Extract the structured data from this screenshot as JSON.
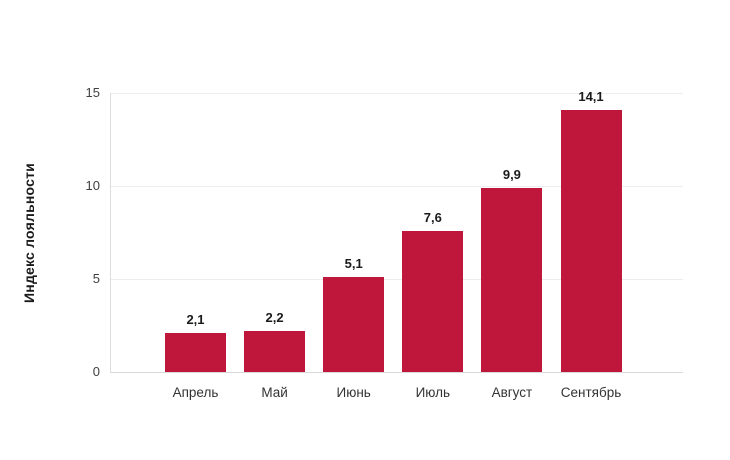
{
  "chart_data": {
    "type": "bar",
    "title": "",
    "xlabel": "",
    "ylabel": "Индекс лояльности",
    "categories": [
      "Апрель",
      "Май",
      "Июнь",
      "Июль",
      "Август",
      "Сентябрь"
    ],
    "values": [
      2.1,
      2.2,
      5.1,
      7.6,
      9.9,
      14.1
    ],
    "value_labels": [
      "2,1",
      "2,2",
      "5,1",
      "7,6",
      "9,9",
      "14,1"
    ],
    "ylim": [
      0,
      15
    ],
    "yticks": [
      0,
      5,
      10,
      15
    ],
    "ytick_labels": [
      "0",
      "5",
      "10",
      "15"
    ],
    "grid": true,
    "legend": false,
    "colors": {
      "bar": "#bf163c",
      "gridline": "#ededed",
      "baseline": "#d9d9d9",
      "axis_line": "#dcdcdc",
      "tick_text": "#404040",
      "value_text": "#1a1a1a",
      "category_text": "#333333"
    }
  }
}
